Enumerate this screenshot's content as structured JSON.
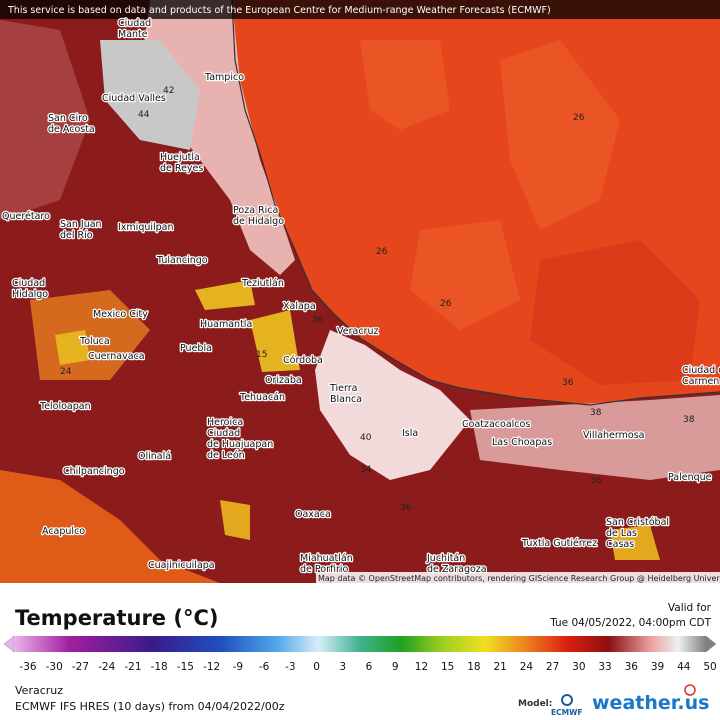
{
  "banner": "This service is based on data and products of the European Centre for Medium-range Weather Forecasts (ECMWF)",
  "map": {
    "cities": [
      [
        "Ciudad",
        "Mante"
      ],
      [
        "Tampico"
      ],
      [
        "Ciudad Valles"
      ],
      [
        "San Ciro",
        "de Acosta"
      ],
      [
        "Huejutla",
        "de Reyes"
      ],
      [
        "Querétaro"
      ],
      [
        "San Juan",
        "del Río"
      ],
      [
        "Ixmiquilpan"
      ],
      [
        "Poza Rica",
        "de Hidalgo"
      ],
      [
        "Tulancingo"
      ],
      [
        "Ciudad",
        "Hidalgo"
      ],
      [
        "Teziutlán"
      ],
      [
        "Xalapa"
      ],
      [
        "Mexico City"
      ],
      [
        "Huamantla"
      ],
      [
        "Veracruz"
      ],
      [
        "Toluca"
      ],
      [
        "Cuernavaca"
      ],
      [
        "Puebla"
      ],
      [
        "Córdoba"
      ],
      [
        "Orizaba"
      ],
      [
        "Tierra",
        "Blanca"
      ],
      [
        "Teloloapan"
      ],
      [
        "Tehuacán"
      ],
      [
        "Heroica",
        "Ciudad",
        "de Huajuapan",
        "de León"
      ],
      [
        "Coatzacoalcos"
      ],
      [
        "Las Choapas"
      ],
      [
        "Villahermosa"
      ],
      [
        "Olinalá"
      ],
      [
        "Isla"
      ],
      [
        "Chilpancingo"
      ],
      [
        "Palenque"
      ],
      [
        "Oaxaca"
      ],
      [
        "Acapulco"
      ],
      [
        "San Cristóbal",
        "de Las",
        "Casas"
      ],
      [
        "Tuxtla Gutiérrez"
      ],
      [
        "Miahuatlán",
        "de Porfirio"
      ],
      [
        "Juchitán",
        "de Zaragoza"
      ],
      [
        "Cuajinicuilapa"
      ],
      [
        "Ciudad del",
        "Carmen"
      ]
    ],
    "contour_labels": [
      "42",
      "44",
      "26",
      "26",
      "26",
      "36",
      "15",
      "40",
      "34",
      "36",
      "38",
      "36",
      "38",
      "36",
      "24"
    ],
    "attribution": "Map data © OpenStreetMap contributors, rendering GIScience Research Group @ Heidelberg University"
  },
  "legend": {
    "title": "Temperature (°C)",
    "valid_label": "Valid for",
    "valid_time": "Tue 04/05/2022, 04:00pm CDT",
    "ticks": [
      -36,
      -30,
      -27,
      -24,
      -21,
      -18,
      -15,
      -12,
      -9,
      -6,
      -3,
      0,
      3,
      6,
      9,
      12,
      15,
      18,
      21,
      24,
      27,
      30,
      33,
      36,
      39,
      44,
      50
    ]
  },
  "footer": {
    "region": "Veracruz",
    "model_run": "ECMWF IFS HRES (10 days) from 04/04/2022/00z",
    "model_label": "Model:",
    "model_logo": "ECMWF",
    "brand": "weather.us"
  }
}
